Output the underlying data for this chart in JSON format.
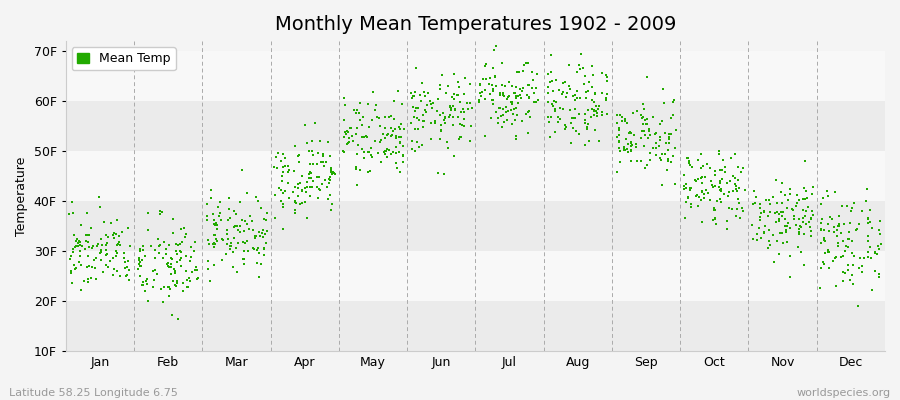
{
  "title": "Monthly Mean Temperatures 1902 - 2009",
  "ylabel": "Temperature",
  "yticks": [
    10,
    20,
    30,
    40,
    50,
    60,
    70
  ],
  "ytick_labels": [
    "10F",
    "20F",
    "30F",
    "40F",
    "50F",
    "60F",
    "70F"
  ],
  "ylim": [
    10,
    72
  ],
  "months": [
    "Jan",
    "Feb",
    "Mar",
    "Apr",
    "May",
    "Jun",
    "Jul",
    "Aug",
    "Sep",
    "Oct",
    "Nov",
    "Dec"
  ],
  "dot_color": "#22aa00",
  "legend_label": "Mean Temp",
  "bg_color": "#f4f4f4",
  "stripe_dark": "#ebebeb",
  "stripe_light": "#f8f8f8",
  "footer_left": "Latitude 58.25 Longitude 6.75",
  "footer_right": "worldspecies.org",
  "title_fontsize": 14,
  "axis_fontsize": 9,
  "footer_fontsize": 8,
  "monthly_means": [
    30,
    27,
    34,
    45,
    52,
    57,
    61,
    59,
    52,
    43,
    37,
    32
  ],
  "monthly_stds": [
    4,
    5,
    4,
    4,
    4,
    4,
    4,
    4,
    4,
    4,
    4,
    5
  ],
  "n_years": 108,
  "seed": 42
}
